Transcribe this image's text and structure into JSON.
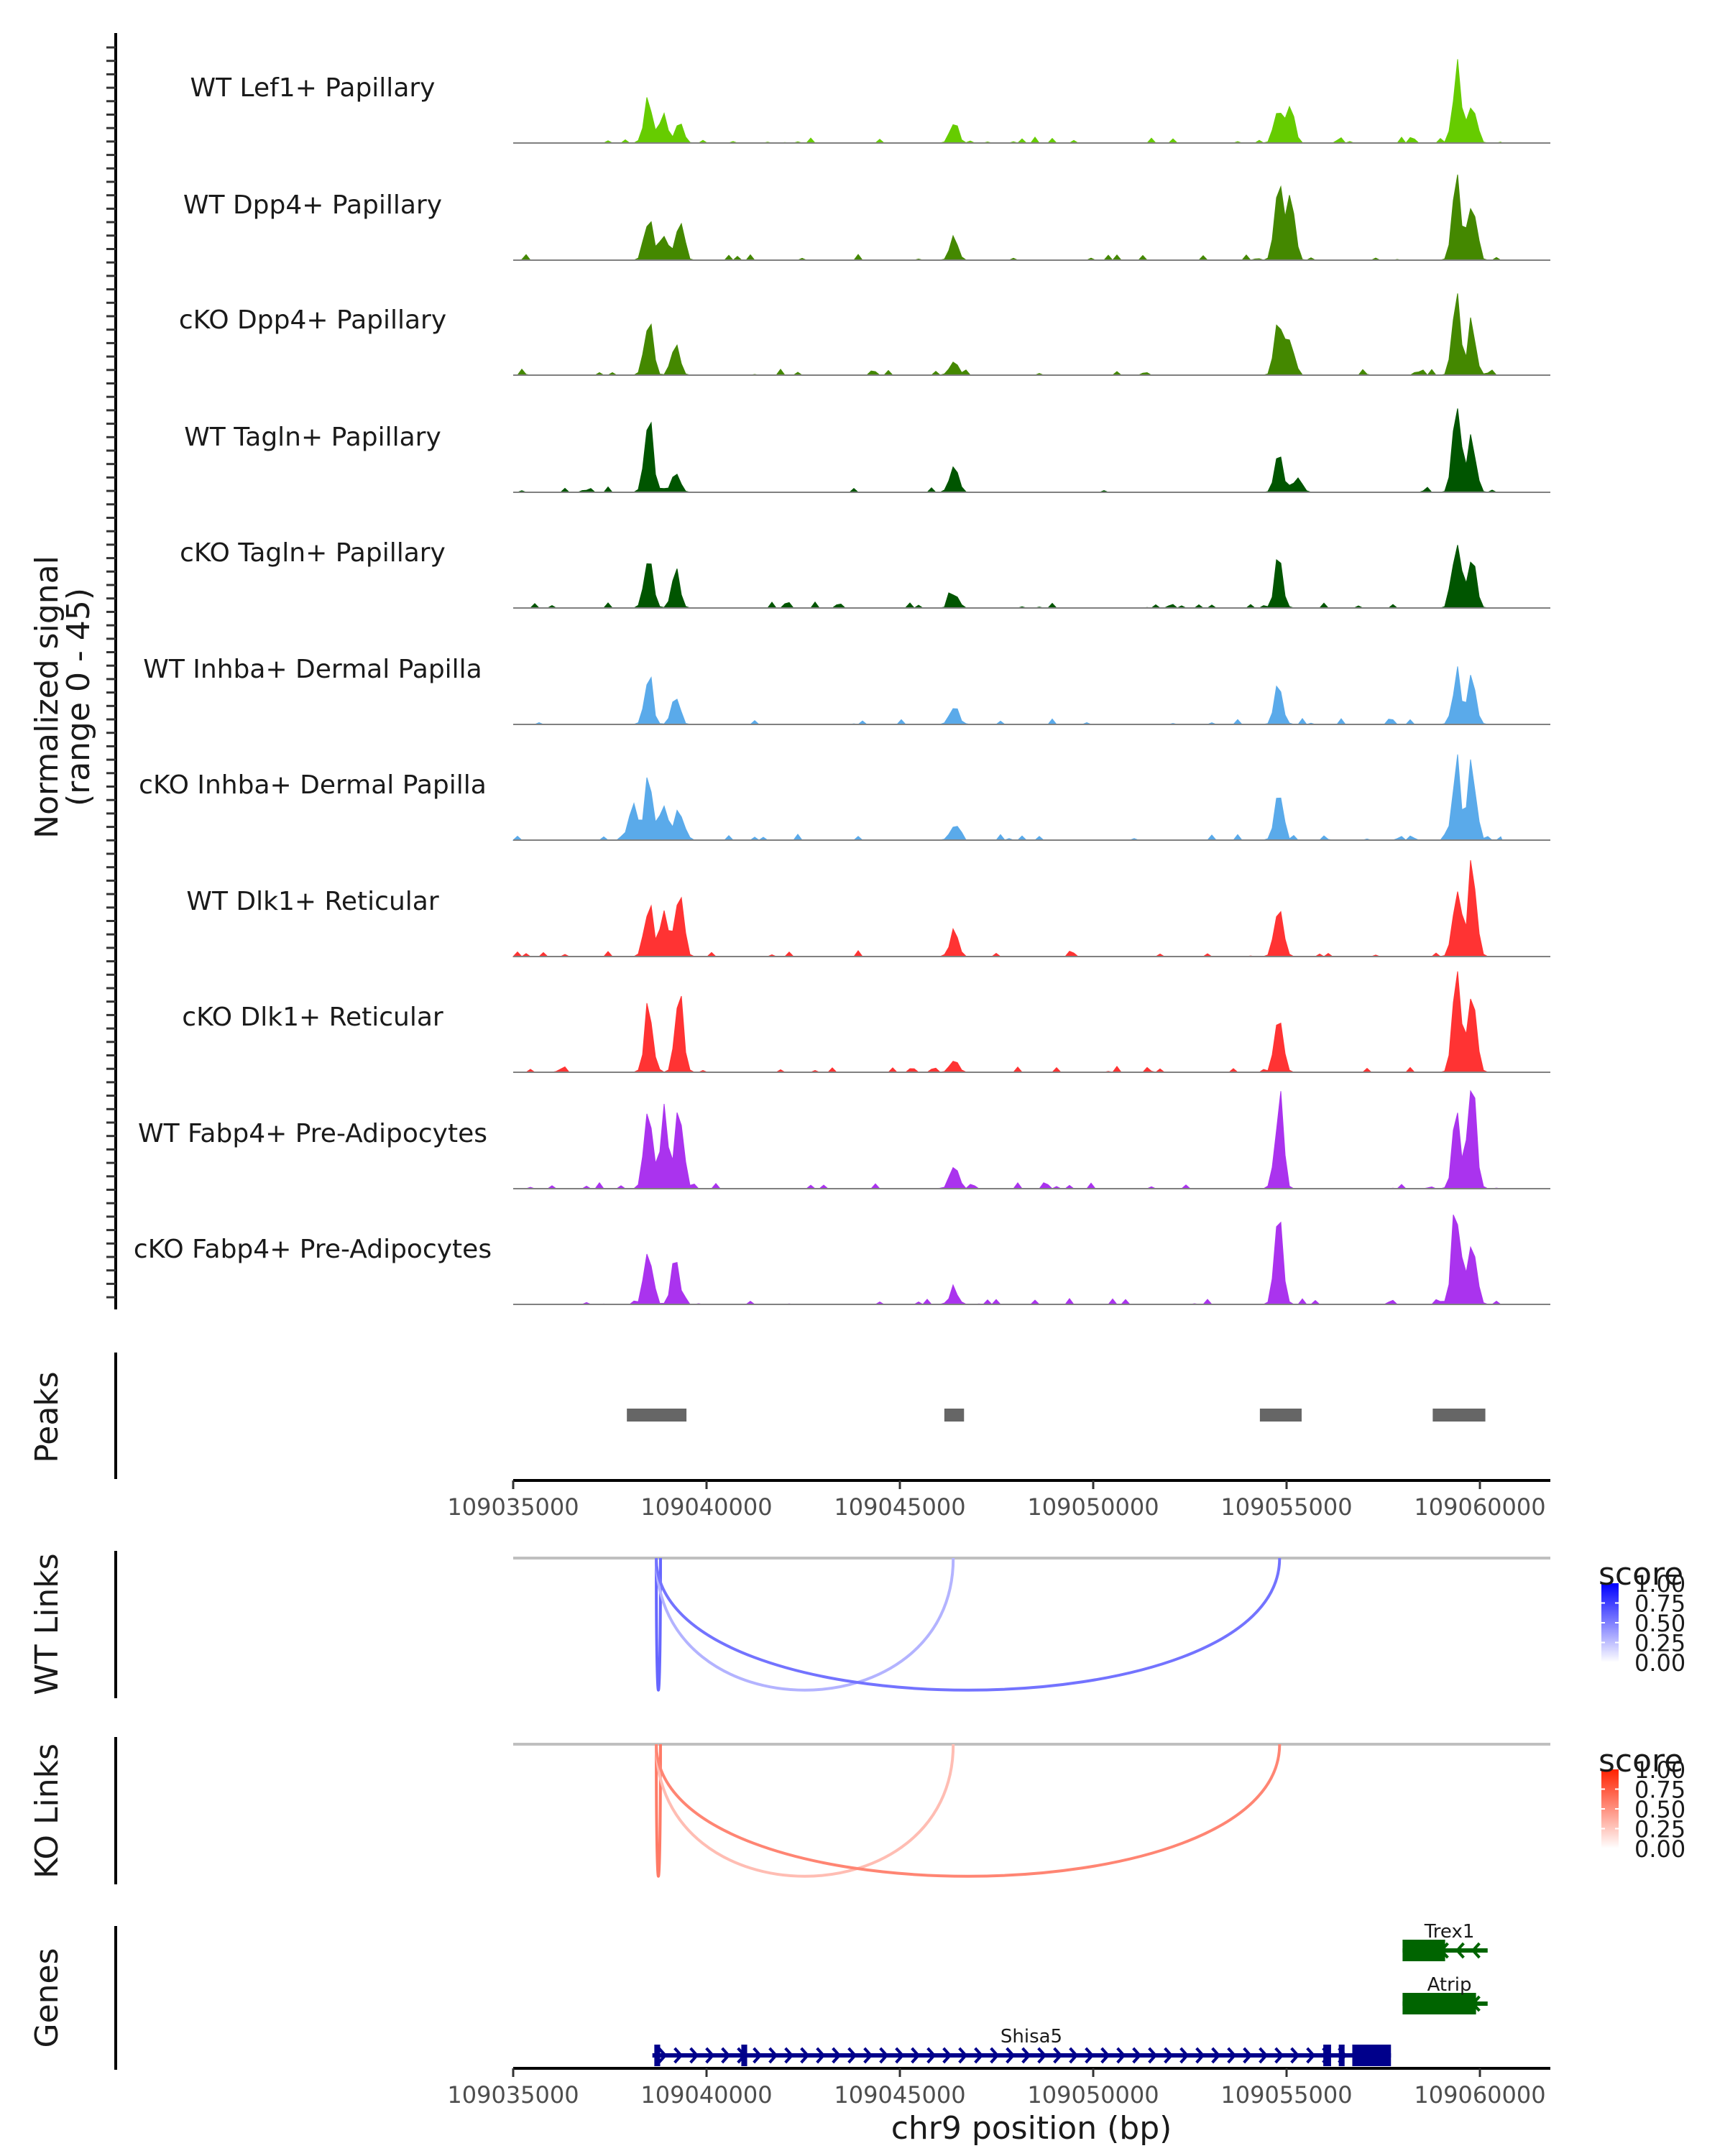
{
  "chart_data": {
    "type": "area",
    "title": "",
    "region": {
      "chrom": "chr9",
      "start": 109035000,
      "end": 109061400
    },
    "xlabel": "chr9 position (bp)",
    "x_ticks": [
      "109035000",
      "109040000",
      "109045000",
      "109050000",
      "109055000",
      "109060000"
    ],
    "x_tick_values": [
      109035000,
      109040000,
      109045000,
      109050000,
      109055000,
      109060000
    ],
    "coverage": {
      "ylabel_line1": "Normalized signal",
      "ylabel_line2": "(range 0 - 45)",
      "ylim": [
        0,
        45
      ],
      "tracks": [
        {
          "name": "WT Lef1+ Papillary",
          "color": "#66cc00",
          "peaks": [
            [
              109038500,
              20
            ],
            [
              109038900,
              12
            ],
            [
              109039300,
              8
            ],
            [
              109046400,
              9
            ],
            [
              109054800,
              17
            ],
            [
              109055100,
              14
            ],
            [
              109059400,
              29
            ],
            [
              109059800,
              20
            ]
          ]
        },
        {
          "name": "WT Dpp4+ Papillary",
          "color": "#448800",
          "peaks": [
            [
              109038500,
              18
            ],
            [
              109038900,
              12
            ],
            [
              109039300,
              15
            ],
            [
              109046400,
              8
            ],
            [
              109054800,
              31
            ],
            [
              109055100,
              24
            ],
            [
              109059400,
              33
            ],
            [
              109059800,
              28
            ]
          ]
        },
        {
          "name": "cKO Dpp4+ Papillary",
          "color": "#448800",
          "peaks": [
            [
              109038500,
              23
            ],
            [
              109039200,
              14
            ],
            [
              109046400,
              7
            ],
            [
              109054800,
              24
            ],
            [
              109055100,
              14
            ],
            [
              109059400,
              34
            ],
            [
              109059800,
              21
            ]
          ]
        },
        {
          "name": "WT Tagln+ Papillary",
          "color": "#005500",
          "peaks": [
            [
              109038500,
              29
            ],
            [
              109039200,
              8
            ],
            [
              109046400,
              12
            ],
            [
              109054800,
              14
            ],
            [
              109055300,
              7
            ],
            [
              109059400,
              33
            ],
            [
              109059800,
              21
            ]
          ]
        },
        {
          "name": "cKO Tagln+ Papillary",
          "color": "#005500",
          "peaks": [
            [
              109038500,
              22
            ],
            [
              109039200,
              14
            ],
            [
              109046400,
              7
            ],
            [
              109054800,
              21
            ],
            [
              109059400,
              31
            ],
            [
              109059800,
              21
            ]
          ]
        },
        {
          "name": "WT Inhba+ Dermal Papilla",
          "color": "#5aaaea",
          "peaks": [
            [
              109038500,
              20
            ],
            [
              109039200,
              12
            ],
            [
              109046400,
              9
            ],
            [
              109054800,
              17
            ],
            [
              109059400,
              21
            ],
            [
              109059800,
              18
            ]
          ]
        },
        {
          "name": "cKO Inhba+ Dermal Papilla",
          "color": "#5aaaea",
          "peaks": [
            [
              109038100,
              17
            ],
            [
              109038500,
              23
            ],
            [
              109038900,
              18
            ],
            [
              109039300,
              12
            ],
            [
              109046400,
              6
            ],
            [
              109054800,
              21
            ],
            [
              109059400,
              35
            ],
            [
              109059800,
              29
            ]
          ]
        },
        {
          "name": "WT Dlk1+ Reticular",
          "color": "#ff3333",
          "peaks": [
            [
              109038500,
              22
            ],
            [
              109038900,
              21
            ],
            [
              109039300,
              25
            ],
            [
              109046400,
              11
            ],
            [
              109054800,
              25
            ],
            [
              109059400,
              32
            ],
            [
              109059800,
              38
            ]
          ]
        },
        {
          "name": "cKO Dlk1+ Reticular",
          "color": "#ff3333",
          "peaks": [
            [
              109038500,
              27
            ],
            [
              109039300,
              31
            ],
            [
              109046400,
              5
            ],
            [
              109054800,
              27
            ],
            [
              109059400,
              38
            ],
            [
              109059800,
              33
            ]
          ]
        },
        {
          "name": "WT Fabp4+ Pre-Adipocytes",
          "color": "#aa33ee",
          "peaks": [
            [
              109038500,
              31
            ],
            [
              109038900,
              28
            ],
            [
              109039300,
              37
            ],
            [
              109046400,
              12
            ],
            [
              109054800,
              38
            ],
            [
              109059400,
              31
            ],
            [
              109059800,
              43
            ]
          ]
        },
        {
          "name": "cKO Fabp4+ Pre-Adipocytes",
          "color": "#aa33ee",
          "peaks": [
            [
              109038500,
              23
            ],
            [
              109039200,
              21
            ],
            [
              109046400,
              7
            ],
            [
              109054800,
              33
            ],
            [
              109059400,
              45
            ],
            [
              109059800,
              31
            ]
          ]
        }
      ]
    },
    "peaks_track": {
      "label": "Peaks",
      "color": "#666666",
      "regions": [
        [
          109037940,
          109039480
        ],
        [
          109046150,
          109046660
        ],
        [
          109054310,
          109055390
        ],
        [
          109058780,
          109060140
        ]
      ]
    },
    "links": [
      {
        "label": "WT Links",
        "legend_title": "score",
        "color_high": "#0000ff",
        "legend_ticks": [
          "1.00",
          "0.75",
          "0.50",
          "0.25",
          "0.00"
        ],
        "arcs": [
          {
            "start": 109038700,
            "end": 109038810,
            "score": 0.6
          },
          {
            "start": 109038700,
            "end": 109046380,
            "score": 0.3
          },
          {
            "start": 109038700,
            "end": 109054820,
            "score": 0.55
          }
        ]
      },
      {
        "label": "KO Links",
        "legend_title": "score",
        "color_high": "#ff2200",
        "legend_ticks": [
          "1.00",
          "0.75",
          "0.50",
          "0.25",
          "0.00"
        ],
        "arcs": [
          {
            "start": 109038700,
            "end": 109038810,
            "score": 0.6
          },
          {
            "start": 109038700,
            "end": 109046380,
            "score": 0.3
          },
          {
            "start": 109038700,
            "end": 109054820,
            "score": 0.55
          }
        ]
      }
    ],
    "genes": {
      "label": "Genes",
      "items": [
        {
          "name": "Trex1",
          "strand": "-",
          "color": "#006400",
          "start": 109058000,
          "end": 109060200,
          "exons": [
            [
              109058000,
              109059100
            ]
          ]
        },
        {
          "name": "Atrip",
          "strand": "-",
          "color": "#006400",
          "start": 109058000,
          "end": 109060200,
          "exons": [
            [
              109058000,
              109059900
            ]
          ]
        },
        {
          "name": "Shisa5",
          "strand": "+",
          "color": "#00008b",
          "start": 109038600,
          "end": 109057700,
          "exons": [
            [
              109038650,
              109038800
            ],
            [
              109040900,
              109041050
            ],
            [
              109055950,
              109056150
            ],
            [
              109056350,
              109056500
            ],
            [
              109056700,
              109057700
            ]
          ]
        }
      ]
    }
  }
}
